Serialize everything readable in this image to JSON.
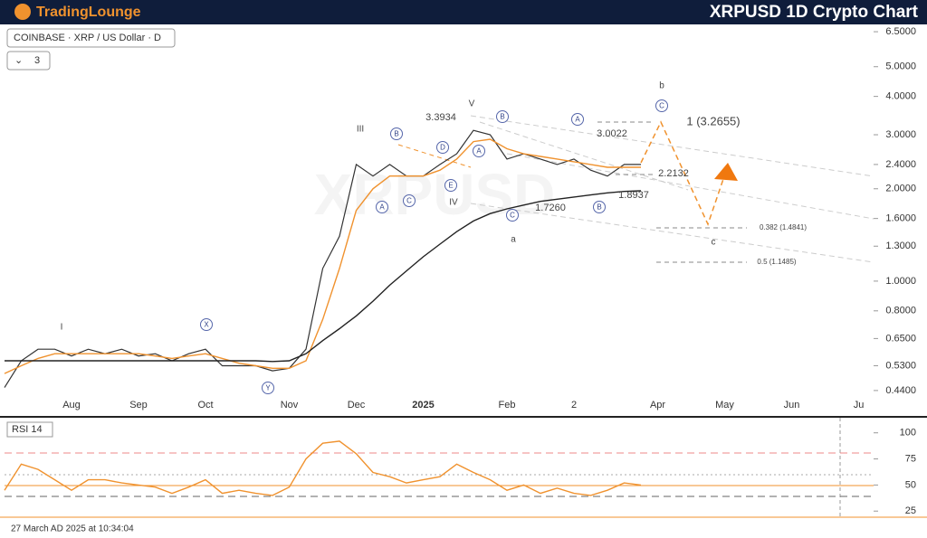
{
  "header": {
    "logo": "TradingLounge",
    "title": "XRPUSD 1D Crypto Chart"
  },
  "symbol_label": "COINBASE · XRP / US Dollar · D",
  "interval": "3",
  "timestamp": "27 March AD 2025 at 10:34:04",
  "watermark": "XRPUSD",
  "chart_data": [
    {
      "type": "line",
      "log_scale": true,
      "ylim": [
        0.425,
        6.82
      ],
      "yticks": [
        {
          "value": 0.44,
          "label": "0.4400"
        },
        {
          "value": 0.53,
          "label": "0.5300"
        },
        {
          "value": 0.65,
          "label": "0.6500"
        },
        {
          "value": 0.8,
          "label": "0.8000"
        },
        {
          "value": 1.0,
          "label": "1.0000"
        },
        {
          "value": 1.3,
          "label": "1.3000"
        },
        {
          "value": 1.6,
          "label": "1.6000"
        },
        {
          "value": 2.0,
          "label": "2.0000"
        },
        {
          "value": 2.4,
          "label": "2.4000"
        },
        {
          "value": 3.0,
          "label": "3.0000"
        },
        {
          "value": 4.0,
          "label": "4.0000"
        },
        {
          "value": 5.0,
          "label": "5.0000"
        },
        {
          "value": 6.5,
          "label": "6.5000"
        }
      ],
      "categories": [
        null,
        null,
        null,
        null,
        "Aug",
        null,
        null,
        null,
        "Sep",
        null,
        null,
        null,
        "Oct",
        null,
        null,
        null,
        null,
        "Nov",
        null,
        null,
        null,
        "Dec",
        null,
        null,
        null,
        "2025",
        null,
        null,
        null,
        null,
        "Feb",
        null,
        null,
        null,
        "2",
        null,
        null,
        null,
        null,
        "Apr",
        null,
        null,
        null,
        "May",
        null,
        null,
        null,
        "Jun",
        null,
        null,
        null,
        "Ju"
      ],
      "series": [
        {
          "name": null,
          "color": "#333333",
          "values": [
            0.45,
            0.55,
            0.6,
            0.6,
            0.57,
            0.6,
            0.58,
            0.6,
            0.57,
            0.58,
            0.55,
            0.58,
            0.6,
            0.53,
            0.53,
            0.53,
            0.51,
            0.52,
            0.6,
            1.1,
            1.4,
            2.4,
            2.2,
            2.4,
            2.2,
            2.2,
            2.4,
            2.6,
            3.1,
            3.0,
            2.5,
            2.6,
            2.5,
            2.4,
            2.5,
            2.3,
            2.2,
            2.4,
            2.4,
            null,
            null,
            null,
            null,
            null,
            null,
            null,
            null,
            null,
            null,
            null,
            null,
            null
          ]
        },
        {
          "name": null,
          "color": "#f0922e",
          "values": [
            0.5,
            0.53,
            0.56,
            0.58,
            0.58,
            0.58,
            0.58,
            0.58,
            0.58,
            0.57,
            0.56,
            0.57,
            0.58,
            0.56,
            0.54,
            0.53,
            0.52,
            0.52,
            0.55,
            0.75,
            1.1,
            1.7,
            2.0,
            2.2,
            2.2,
            2.2,
            2.3,
            2.5,
            2.85,
            2.9,
            2.7,
            2.6,
            2.55,
            2.5,
            2.45,
            2.4,
            2.35,
            2.35,
            2.35,
            null,
            null,
            null,
            null,
            null,
            null,
            null,
            null,
            null,
            null,
            null,
            null,
            null
          ]
        },
        {
          "name": null,
          "color": "#222222",
          "values": [
            0.55,
            0.55,
            0.55,
            0.55,
            0.55,
            0.55,
            0.55,
            0.55,
            0.55,
            0.55,
            0.55,
            0.55,
            0.55,
            0.55,
            0.55,
            0.55,
            0.547,
            0.55,
            0.58,
            0.64,
            0.7,
            0.77,
            0.86,
            0.97,
            1.08,
            1.2,
            1.32,
            1.45,
            1.57,
            1.66,
            1.72,
            1.77,
            1.82,
            1.85,
            1.88,
            1.91,
            1.94,
            1.96,
            1.97,
            null,
            null,
            null,
            null,
            null,
            null,
            null,
            null,
            null,
            null,
            null,
            null,
            null
          ]
        }
      ],
      "annotations": [
        "I",
        "III",
        "V",
        "IV",
        "3.3934",
        "3.0022",
        "1.7260",
        "1.8937",
        "2.2132",
        "1 (3.2655)",
        "0.382 (1.4841)",
        "0.5 (1.1485)",
        "a",
        "b",
        "c"
      ],
      "circled_labels": [
        "X",
        "Y",
        "A",
        "C",
        "B",
        "E",
        "D",
        "B",
        "A",
        "C",
        "A",
        "B",
        "C"
      ]
    },
    {
      "type": "line",
      "legend": "RSI 14",
      "ylim": [
        20,
        113.6
      ],
      "yticks": [
        25,
        50,
        75,
        100
      ],
      "series": [
        {
          "name": null,
          "color": "#f0922e",
          "values": [
            45,
            70,
            65,
            55,
            45,
            55,
            55,
            52,
            50,
            48,
            42,
            48,
            55,
            42,
            45,
            42,
            40,
            48,
            75,
            90,
            92,
            80,
            62,
            58,
            52,
            55,
            58,
            70,
            62,
            55,
            45,
            50,
            42,
            47,
            42,
            40,
            45,
            52,
            50,
            null,
            null,
            null,
            null,
            null,
            null,
            null,
            null,
            null,
            null,
            null,
            null,
            null
          ]
        }
      ]
    }
  ]
}
